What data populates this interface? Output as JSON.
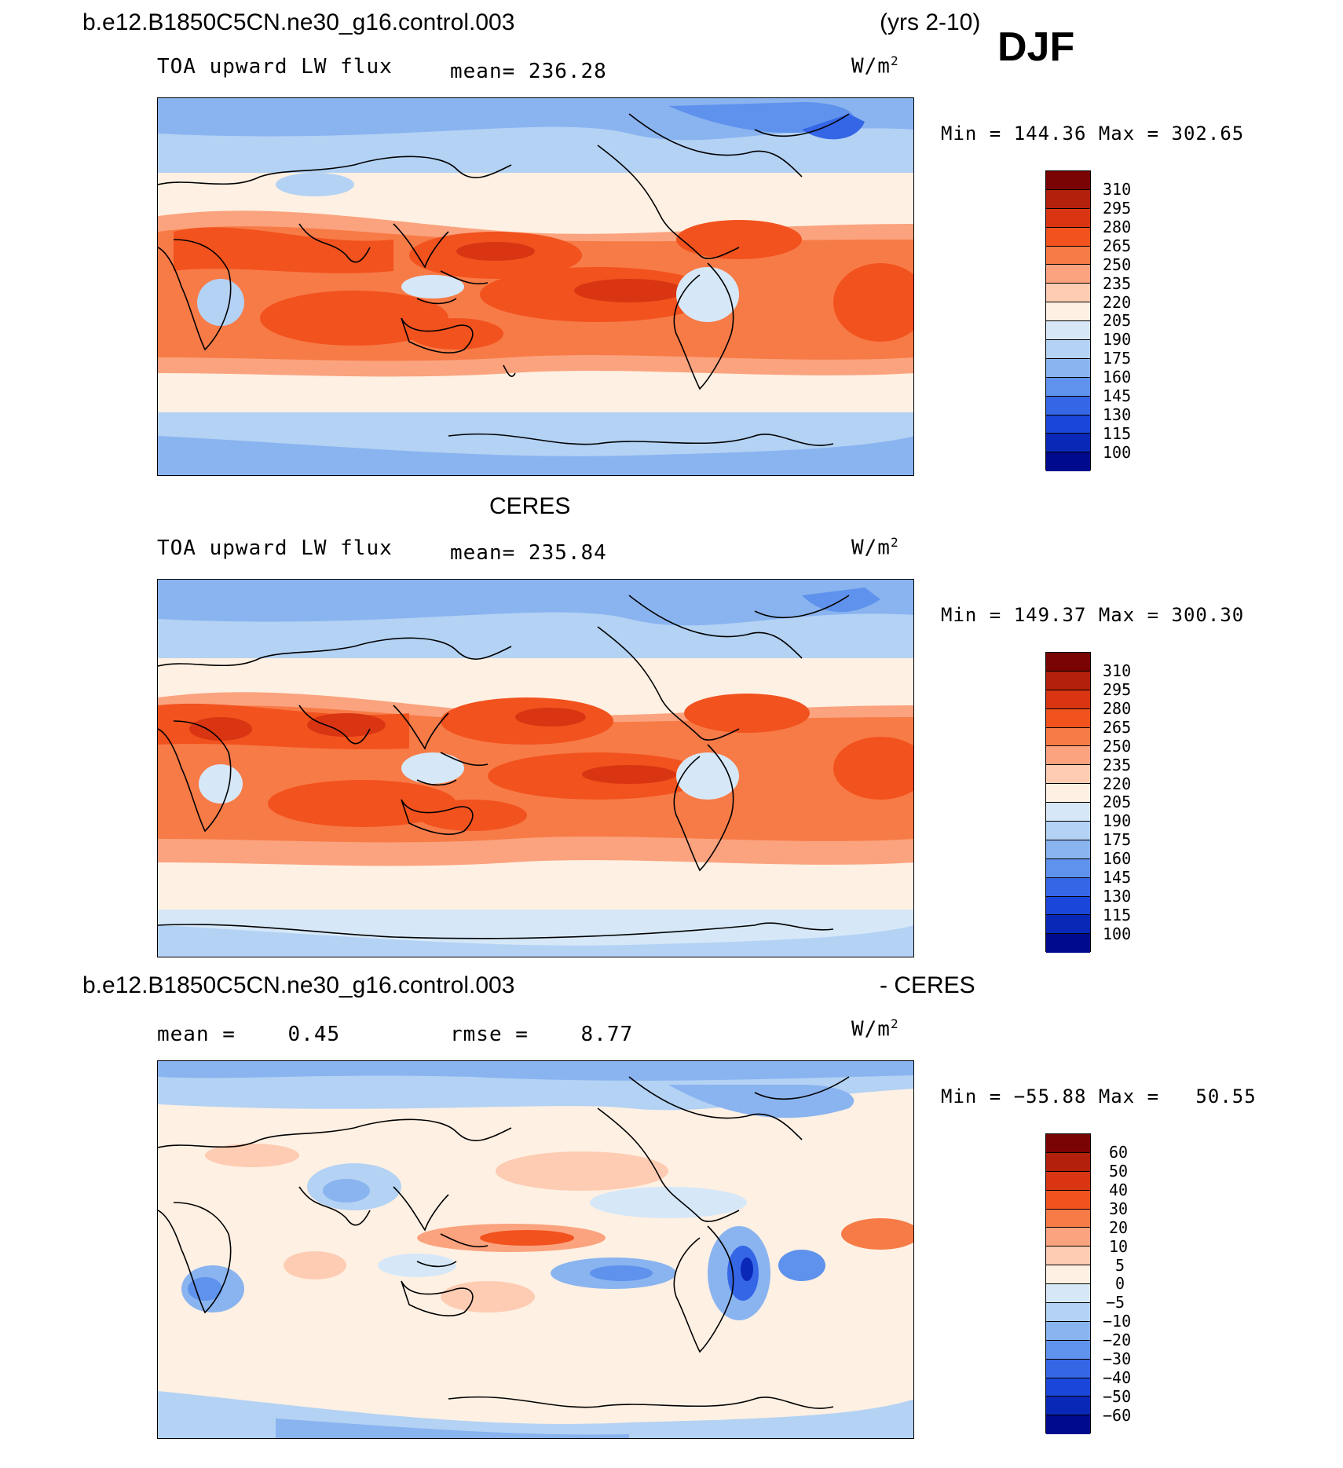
{
  "header": {
    "case_name": "b.e12.B1850C5CN.ne30_g16.control.003",
    "years": "(yrs 2-10)",
    "season": "DJF"
  },
  "panels": [
    {
      "id": "model",
      "title": "",
      "variable": "TOA upward LW flux",
      "stat": "mean= 236.28",
      "unit": "W/m",
      "unit_sup": "2",
      "minmax": "Min = 144.36 Max = 302.65",
      "colorbar": {
        "labels": [
          "310",
          "295",
          "280",
          "265",
          "250",
          "235",
          "220",
          "205",
          "190",
          "175",
          "160",
          "145",
          "130",
          "115",
          "100"
        ],
        "colors": [
          "#7a0403",
          "#b3200b",
          "#d93512",
          "#f2521e",
          "#f77b47",
          "#fba37e",
          "#fdccb2",
          "#fef0e3",
          "#d6e8f8",
          "#b3d2f4",
          "#8ab4f0",
          "#5f92ec",
          "#3466e6",
          "#1a46d9",
          "#0a28b8",
          "#000a8c"
        ]
      }
    },
    {
      "id": "obs",
      "title": "CERES",
      "variable": "TOA upward LW flux",
      "stat": "mean= 235.84",
      "unit": "W/m",
      "unit_sup": "2",
      "minmax": "Min = 149.37 Max = 300.30",
      "colorbar": {
        "labels": [
          "310",
          "295",
          "280",
          "265",
          "250",
          "235",
          "220",
          "205",
          "190",
          "175",
          "160",
          "145",
          "130",
          "115",
          "100"
        ],
        "colors": [
          "#7a0403",
          "#b3200b",
          "#d93512",
          "#f2521e",
          "#f77b47",
          "#fba37e",
          "#fdccb2",
          "#fef0e3",
          "#d6e8f8",
          "#b3d2f4",
          "#8ab4f0",
          "#5f92ec",
          "#3466e6",
          "#1a46d9",
          "#0a28b8",
          "#000a8c"
        ]
      }
    },
    {
      "id": "diff",
      "title_left": "b.e12.B1850C5CN.ne30_g16.control.003",
      "title_right": "- CERES",
      "stat_mean": "mean =    0.45",
      "stat_rmse": "rmse =    8.77",
      "unit": "W/m",
      "unit_sup": "2",
      "minmax": "Min = −55.88 Max =   50.55",
      "colorbar": {
        "labels": [
          "60",
          "50",
          "40",
          "30",
          "20",
          "10",
          "5",
          "0",
          "−5",
          "−10",
          "−20",
          "−30",
          "−40",
          "−50",
          "−60"
        ],
        "colors": [
          "#7a0403",
          "#b3200b",
          "#d93512",
          "#f2521e",
          "#f77b47",
          "#fba37e",
          "#fdccb2",
          "#fef0e3",
          "#d6e8f8",
          "#b3d2f4",
          "#8ab4f0",
          "#5f92ec",
          "#3466e6",
          "#1a46d9",
          "#0a28b8",
          "#000a8c"
        ]
      }
    }
  ]
}
